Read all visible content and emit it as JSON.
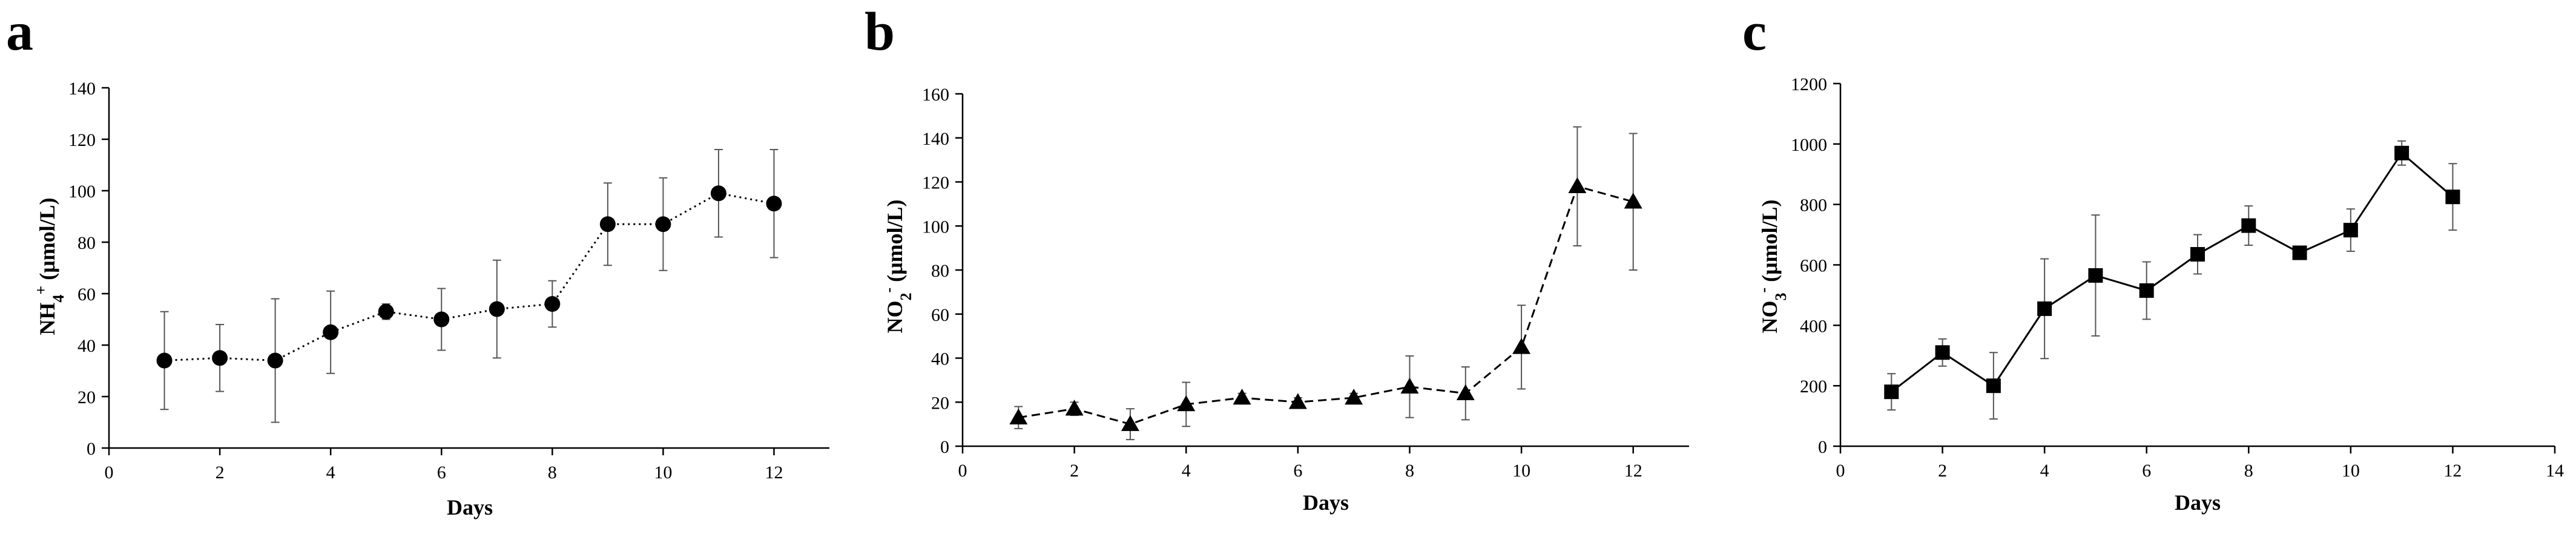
{
  "panels": [
    {
      "letter": "a",
      "xlabel": "Days",
      "ylabel_base": "NH",
      "ylabel_sub": "4",
      "ylabel_sup": "+",
      "ylabel_unit": " (μmol/L)"
    },
    {
      "letter": "b",
      "xlabel": "Days",
      "ylabel_base": "NO",
      "ylabel_sub": "2",
      "ylabel_sup": "-",
      "ylabel_unit": " (μmol/L)"
    },
    {
      "letter": "c",
      "xlabel": "Days",
      "ylabel_base": "NO",
      "ylabel_sub": "3",
      "ylabel_sup": "-",
      "ylabel_unit": " (μmol/L)"
    }
  ],
  "chart_data": [
    {
      "type": "line",
      "marker": "circle",
      "line_style": "dotted",
      "color": "#000000",
      "xlabel": "Days",
      "ylabel": "NH4+ (μmol/L)",
      "xlim": [
        0,
        13
      ],
      "ylim": [
        0,
        140
      ],
      "xticks": [
        0,
        2,
        4,
        6,
        8,
        10,
        12
      ],
      "yticks": [
        0,
        20,
        40,
        60,
        80,
        100,
        120,
        140
      ],
      "x": [
        1,
        2,
        3,
        4,
        5,
        6,
        7,
        8,
        9,
        10,
        11,
        12
      ],
      "y": [
        34,
        35,
        34,
        45,
        53,
        50,
        54,
        56,
        87,
        87,
        99,
        95
      ],
      "error": [
        19,
        13,
        24,
        16,
        3,
        12,
        19,
        9,
        16,
        18,
        17,
        21
      ]
    },
    {
      "type": "line",
      "marker": "triangle",
      "line_style": "dashed",
      "color": "#000000",
      "xlabel": "Days",
      "ylabel": "NO2- (μmol/L)",
      "xlim": [
        0,
        13
      ],
      "ylim": [
        0,
        160
      ],
      "xticks": [
        0,
        2,
        4,
        6,
        8,
        10,
        12
      ],
      "yticks": [
        0,
        20,
        40,
        60,
        80,
        100,
        120,
        140,
        160
      ],
      "x": [
        1,
        2,
        3,
        4,
        5,
        6,
        7,
        8,
        9,
        10,
        11,
        12
      ],
      "y": [
        13,
        17,
        10,
        19,
        22,
        20,
        22,
        27,
        24,
        45,
        118,
        111
      ],
      "error": [
        5,
        3,
        7,
        10,
        2,
        2,
        2,
        14,
        12,
        19,
        27,
        31
      ]
    },
    {
      "type": "line",
      "marker": "square",
      "line_style": "solid",
      "color": "#000000",
      "xlabel": "Days",
      "ylabel": "NO3- (μmol/L)",
      "xlim": [
        0,
        14
      ],
      "ylim": [
        0,
        1200
      ],
      "xticks": [
        0,
        2,
        4,
        6,
        8,
        10,
        12,
        14
      ],
      "yticks": [
        0,
        200,
        400,
        600,
        800,
        1000,
        1200
      ],
      "x": [
        1,
        2,
        3,
        4,
        5,
        6,
        7,
        8,
        9,
        10,
        11,
        12
      ],
      "y": [
        180,
        310,
        200,
        455,
        565,
        515,
        635,
        730,
        640,
        715,
        970,
        825
      ],
      "error": [
        60,
        45,
        110,
        165,
        200,
        95,
        65,
        65,
        15,
        70,
        40,
        110
      ]
    }
  ]
}
